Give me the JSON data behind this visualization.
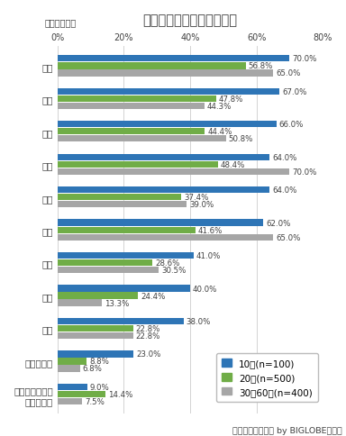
{
  "title": "人生で大切にしているもの",
  "subtitle": "（複数回答）",
  "footnote": "「あしたメディア by BIGLOBE」調べ",
  "categories": [
    "お金",
    "趣味",
    "時間",
    "家族",
    "友達",
    "健康",
    "知識",
    "恋愛",
    "仕事",
    "地位・名誉",
    "大切にしている\nものはない"
  ],
  "series": {
    "10代(n=100)": [
      70.0,
      67.0,
      66.0,
      64.0,
      64.0,
      62.0,
      41.0,
      40.0,
      38.0,
      23.0,
      9.0
    ],
    "20代(n=500)": [
      56.8,
      47.8,
      44.4,
      48.4,
      37.4,
      41.6,
      28.6,
      24.4,
      22.8,
      8.8,
      14.4
    ],
    "30～60代(n=400)": [
      65.0,
      44.3,
      50.8,
      70.0,
      39.0,
      65.0,
      30.5,
      13.3,
      22.8,
      6.8,
      7.5
    ]
  },
  "colors": {
    "10代(n=100)": "#2E75B6",
    "20代(n=500)": "#70AD47",
    "30～60代(n=400)": "#A6A6A6"
  },
  "xlim": [
    0,
    80
  ],
  "xticks": [
    0,
    20,
    40,
    60,
    80
  ],
  "xticklabels": [
    "0%",
    "20%",
    "40%",
    "60%",
    "80%"
  ],
  "bg_color": "#FFFFFF",
  "grid_color": "#CCCCCC",
  "text_color": "#404040",
  "label_fontsize": 6.2,
  "title_fontsize": 10.5,
  "subtitle_fontsize": 7.0,
  "cat_fontsize": 7.5,
  "tick_fontsize": 7.0,
  "legend_fontsize": 7.5,
  "footnote_fontsize": 6.8
}
